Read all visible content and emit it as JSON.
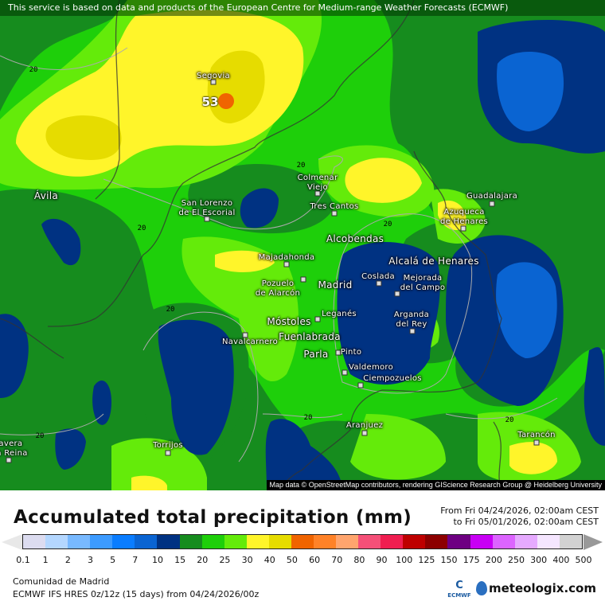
{
  "banner": "This service is based on data and products of the European Centre for Medium-range Weather Forecasts (ECMWF)",
  "map": {
    "credit": "Map data © OpenStreetMap contributors, rendering GIScience Research Group @ Heidelberg University",
    "max_value_label": "53",
    "contour_label": "20",
    "cities": {
      "segovia": "Segovia",
      "avila": "Ávila",
      "san_lorenzo": "San Lorenzo\nde El Escorial",
      "colmenar": "Colmenar\nViejo",
      "tres_cantos": "Tres Cantos",
      "guadalajara": "Guadalajara",
      "azuqueca": "Azuqueca\nde Henares",
      "alcobendas": "Alcobendas",
      "alcala": "Alcalá de Henares",
      "majadahonda": "Majadahonda",
      "pozuelo": "Pozuelo\nde Alarcón",
      "madrid": "Madrid",
      "coslada": "Coslada",
      "mejorada": "Mejorada\ndel Campo",
      "mostoles": "Móstoles",
      "leganes": "Leganés",
      "arganda": "Arganda\ndel Rey",
      "navalcarnero": "Navalcarnero",
      "fuenlabrada": "Fuenlabrada",
      "parla": "Parla",
      "pinto": "Pinto",
      "valdemoro": "Valdemoro",
      "ciempozuelos": "Ciempozuelos",
      "aranjuez": "Aranjuez",
      "tarancon": "Tarancón",
      "torrijos": "Torrijos",
      "talavera": "lavera\na Reina"
    }
  },
  "title": "Accumulated total precipitation (mm)",
  "period": {
    "from": "From Fri 04/24/2026, 02:00am CEST",
    "to": "to Fri 05/01/2026, 02:00am CEST"
  },
  "legend": {
    "colors": [
      "#dcdcf0",
      "#b4d7ff",
      "#78b9ff",
      "#3c9bff",
      "#0a7dff",
      "#0a64d2",
      "#003282",
      "#168c1e",
      "#1ecf0a",
      "#64eb0a",
      "#fff52a",
      "#e6dc00",
      "#f06400",
      "#ff8228",
      "#ffa56e",
      "#f55078",
      "#f01e50",
      "#be0000",
      "#8c0000",
      "#6e0082",
      "#c800f5",
      "#dc64ff",
      "#e6aaff",
      "#f5e6ff",
      "#d2d2d2"
    ],
    "ticks": [
      "0.1",
      "1",
      "2",
      "3",
      "5",
      "7",
      "10",
      "15",
      "20",
      "25",
      "30",
      "40",
      "50",
      "60",
      "70",
      "80",
      "90",
      "100",
      "125",
      "150",
      "175",
      "200",
      "250",
      "300",
      "400",
      "500"
    ]
  },
  "footer": {
    "region": "Comunidad de Madrid",
    "model": "ECMWF IFS HRES 0z/12z (15 days) from  04/24/2026/00z",
    "ecmwf_logo": "ECMWF",
    "brand": "meteologix.com"
  }
}
